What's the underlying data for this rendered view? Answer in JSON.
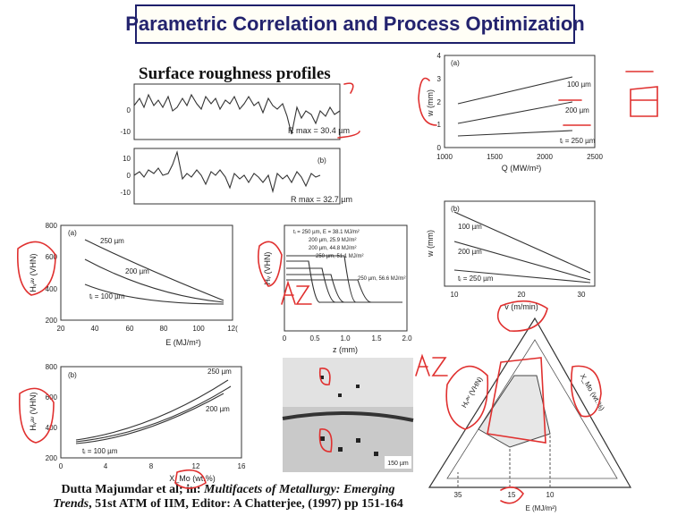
{
  "header": {
    "title": "Parametric Correlation and Process Optimization"
  },
  "roughness": {
    "subtitle": "Surface roughness profiles",
    "profile_a": {
      "yticks": [
        "0",
        "-10"
      ],
      "label": "R max = 30.4 µm"
    },
    "profile_b": {
      "panel": "(b)",
      "yticks": [
        "10",
        "0",
        "-10"
      ],
      "label": "R max = 32.7 µm"
    }
  },
  "width_vs_power": {
    "panel": "(a)",
    "ylabel": "w (mm)",
    "yticks": [
      "4",
      "3",
      "2",
      "1",
      "0"
    ],
    "xticks": [
      "1000",
      "1500",
      "2000",
      "2500"
    ],
    "xlabel": "Q (MW/m²)",
    "curve_labels": [
      "100 µm",
      "200 µm",
      "tᵢ = 250 µm"
    ]
  },
  "width_vs_speed": {
    "panel": "(b)",
    "ylabel": "w (mm)",
    "xticks": [
      "10",
      "20",
      "30"
    ],
    "xlabel": "v (m/min)",
    "curve_labels": [
      "100 µm",
      "200 µm",
      "tᵢ = 250 µm"
    ]
  },
  "hardness_vs_energy": {
    "panel": "(a)",
    "ylabel": "Hᵥᵃᵛ (VHN)",
    "yticks": [
      "800",
      "600",
      "400",
      "200"
    ],
    "xticks": [
      "20",
      "40",
      "60",
      "80",
      "100",
      "12("
    ],
    "xlabel": "E (MJ/m²)",
    "curve_labels": [
      "250 µm",
      "200 µm",
      "tᵢ = 100 µm"
    ]
  },
  "hardness_vs_depth": {
    "ylabel": "Hᵥ (VHN)",
    "xticks": [
      "0",
      "0.5",
      "1.0",
      "1.5",
      "2.0"
    ],
    "xlabel": "z (mm)",
    "legend": [
      "tᵢ = 250 µm, E = 38.1 MJ/m²",
      "200 µm, 25.9 MJ/m²",
      "200 µm, 44.8 MJ/m²",
      "250 µm, 51.1 MJ/m²",
      "250 µm, 56.6 MJ/m²"
    ]
  },
  "hardness_vs_mo": {
    "panel": "(b)",
    "ylabel": "Hᵥᵃᵛ (VHN)",
    "yticks": [
      "800",
      "600",
      "400",
      "200"
    ],
    "xticks": [
      "0",
      "4",
      "8",
      "12",
      "16"
    ],
    "xlabel": "X_Mo (wt.%)",
    "curve_labels": [
      "250 µm",
      "200 µm",
      "tᵢ = 100 µm"
    ]
  },
  "micrograph": {
    "scale": "150 µm"
  },
  "ternary": {
    "left_label": "Hᵥᵃᵛ (VHN)",
    "right_label": "X_Mo (wt.%)",
    "base_ticks": [
      "35",
      "15",
      "10"
    ],
    "base_label": "E (MJ/m²)"
  },
  "citation": {
    "author": "Dutta Majumdar et al; in: ",
    "book_a": "Multifacets of Metallurgy: Emerging",
    "book_b": "Trends",
    "rest": ", 51st ATM of IIM, Editor: A Chatterjee, (1997) pp 151-164"
  }
}
